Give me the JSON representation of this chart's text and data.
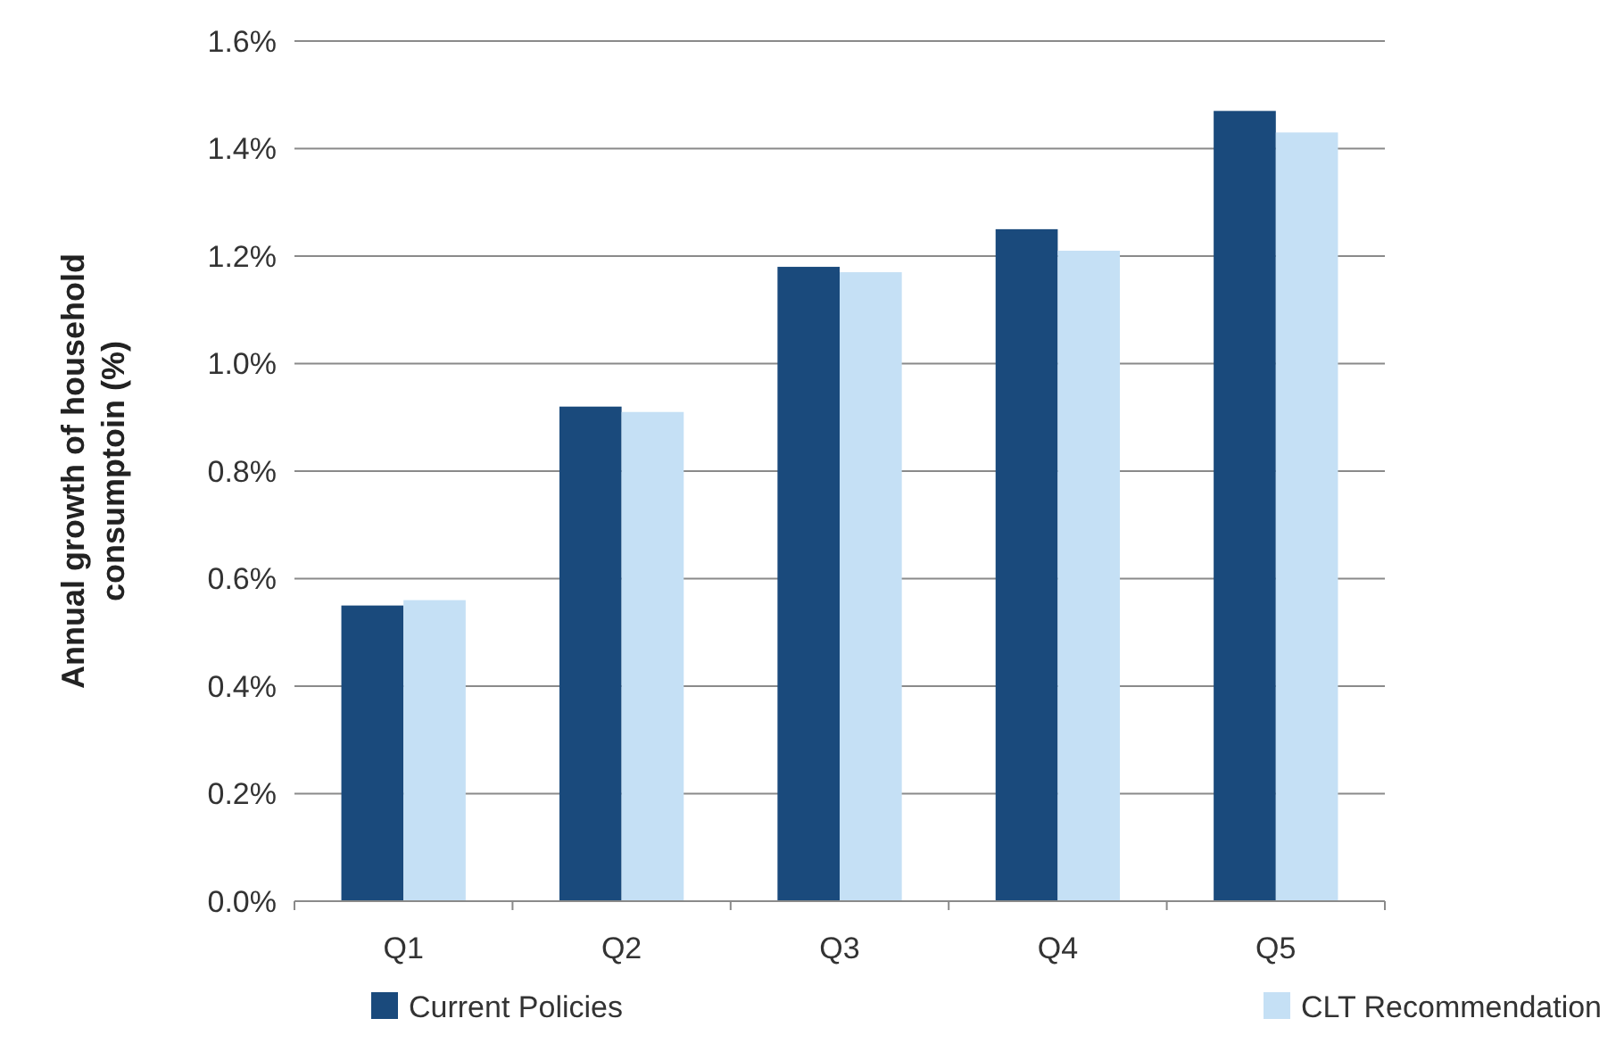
{
  "chart_data": {
    "type": "bar",
    "ylabel": "Annual growth of household consumptoin (%)",
    "categories": [
      "Q1",
      "Q2",
      "Q3",
      "Q4",
      "Q5"
    ],
    "series": [
      {
        "name": "Current Policies",
        "color": "#1a4a7c",
        "values": [
          0.55,
          0.92,
          1.18,
          1.25,
          1.47
        ]
      },
      {
        "name": "CLT Recommendation",
        "color": "#c5e0f5",
        "values": [
          0.56,
          0.91,
          1.17,
          1.21,
          1.43
        ]
      }
    ],
    "ylim": [
      0,
      1.6
    ],
    "yticks": [
      {
        "value": 0,
        "label": "0.0%"
      },
      {
        "value": 0.2,
        "label": "0.2%"
      },
      {
        "value": 0.4,
        "label": "0.4%"
      },
      {
        "value": 0.6,
        "label": "0.6%"
      },
      {
        "value": 0.8,
        "label": "0.8%"
      },
      {
        "value": 1.0,
        "label": "1.0%"
      },
      {
        "value": 1.2,
        "label": "1.2%"
      },
      {
        "value": 1.4,
        "label": "1.4%"
      },
      {
        "value": 1.6,
        "label": "1.6%"
      }
    ],
    "grid": "y",
    "legend": "bottom"
  }
}
